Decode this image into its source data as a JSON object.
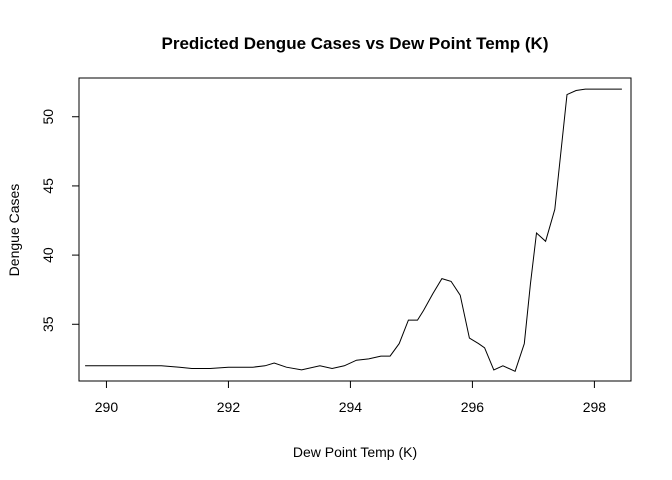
{
  "chart_data": {
    "type": "line",
    "title": "Predicted Dengue Cases vs Dew Point Temp (K)",
    "xlabel": "Dew Point Temp (K)",
    "ylabel": "Dengue Cases",
    "xlim": [
      289.55,
      298.6
    ],
    "ylim": [
      30.9,
      52.8
    ],
    "xticks": [
      290,
      292,
      294,
      296,
      298
    ],
    "yticks": [
      35,
      40,
      45,
      50
    ],
    "grid": false,
    "line_color": "#000000",
    "series": [
      {
        "x": [
          289.65,
          290.0,
          290.5,
          290.9,
          291.2,
          291.4,
          291.7,
          292.0,
          292.4,
          292.6,
          292.75,
          292.95,
          293.2,
          293.5,
          293.7,
          293.9,
          294.1,
          294.3,
          294.5,
          294.65,
          294.8,
          294.95,
          295.1,
          295.2,
          295.35,
          295.5,
          295.65,
          295.8,
          295.95,
          296.1,
          296.2,
          296.35,
          296.5,
          296.7,
          296.85,
          296.95,
          297.05,
          297.2,
          297.35,
          297.55,
          297.7,
          297.85,
          298.05,
          298.3,
          298.45
        ],
        "y": [
          32.0,
          32.0,
          32.0,
          32.0,
          31.9,
          31.8,
          31.8,
          31.9,
          31.9,
          32.0,
          32.2,
          31.9,
          31.7,
          32.0,
          31.8,
          32.0,
          32.4,
          32.5,
          32.7,
          32.7,
          33.6,
          35.3,
          35.3,
          36.0,
          37.2,
          38.3,
          38.1,
          37.1,
          34.0,
          33.6,
          33.3,
          31.7,
          32.0,
          31.6,
          33.6,
          37.9,
          41.6,
          41.0,
          43.3,
          51.6,
          51.9,
          52.0,
          52.0,
          52.0,
          52.0
        ]
      }
    ]
  }
}
